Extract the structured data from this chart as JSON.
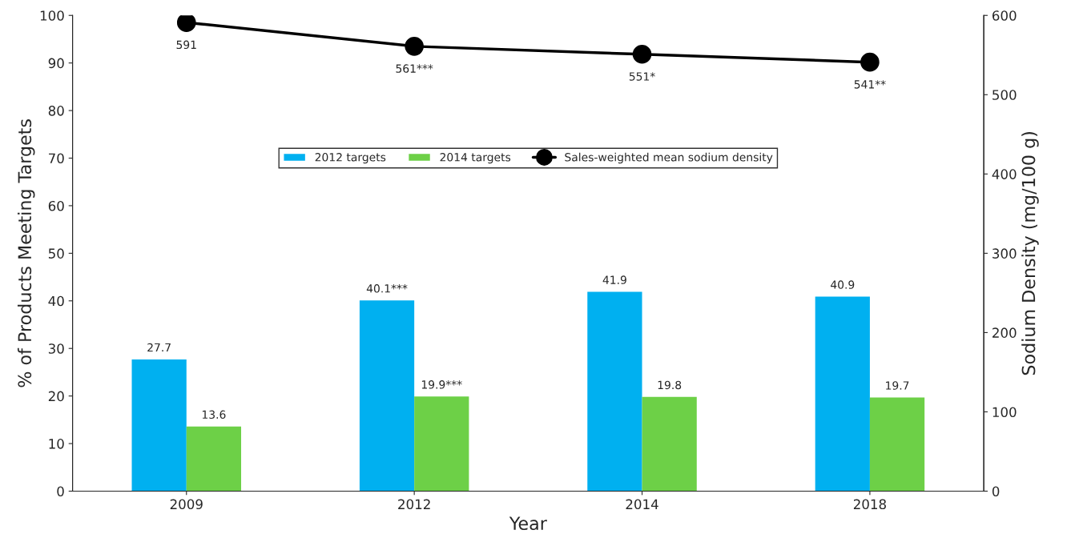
{
  "chart_data": {
    "type": "bar",
    "xlabel": "Year",
    "ylabel": "% of Products Meeting Targets",
    "y2label": "Sodium Density (mg/100 g)",
    "categories": [
      "2009",
      "2012",
      "2014",
      "2018"
    ],
    "series": [
      {
        "name": "2012 targets",
        "color": "#00b0f0",
        "values": [
          27.7,
          40.1,
          41.9,
          40.9
        ],
        "value_labels": [
          "27.7",
          "40.1***",
          "41.9",
          "40.9"
        ]
      },
      {
        "name": "2014 targets",
        "color": "#6dd047",
        "values": [
          13.6,
          19.9,
          19.8,
          19.7
        ],
        "value_labels": [
          "13.6",
          "19.9***",
          "19.8",
          "19.7"
        ]
      },
      {
        "name": "Sales-weighted mean sodium density",
        "type": "line",
        "axis": "y2",
        "color": "#000000",
        "marker": "circle",
        "line_style": "solid",
        "values": [
          591,
          561,
          551,
          541
        ],
        "value_labels": [
          "591",
          "561***",
          "551*",
          "541**"
        ]
      }
    ],
    "ylim": [
      0,
      100
    ],
    "yticks": [
      0,
      10,
      20,
      30,
      40,
      50,
      60,
      70,
      80,
      90,
      100
    ],
    "y2lim": [
      0,
      600
    ],
    "y2ticks": [
      0,
      100,
      200,
      300,
      400,
      500,
      600
    ],
    "grid": false,
    "legend": "center"
  }
}
